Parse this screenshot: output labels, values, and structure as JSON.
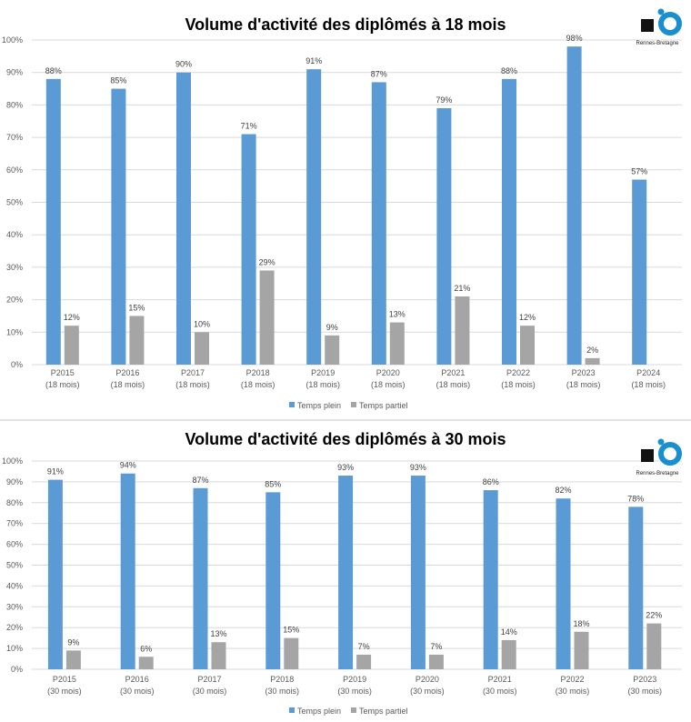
{
  "colors": {
    "plein": "#5B9BD5",
    "partiel": "#A5A5A5",
    "grid": "#D9D9D9",
    "text": "#595959",
    "logo_blue": "#1A8FD0"
  },
  "logo": {
    "text": "Rennes-Bretagne"
  },
  "chart_data": [
    {
      "type": "bar",
      "title": "Volume d'activité des diplômés à 18 mois",
      "categories": [
        "P2015",
        "P2016",
        "P2017",
        "P2018",
        "P2019",
        "P2020",
        "P2021",
        "P2022",
        "P2023",
        "P2024"
      ],
      "category_sub": "(18 mois)",
      "ylim": [
        0,
        100
      ],
      "yticks": [
        "0%",
        "10%",
        "20%",
        "30%",
        "40%",
        "50%",
        "60%",
        "70%",
        "80%",
        "90%",
        "100%"
      ],
      "legend_position": "bottom",
      "series": [
        {
          "name": "Temps plein",
          "values": [
            88,
            85,
            90,
            71,
            91,
            87,
            79,
            88,
            98,
            57
          ],
          "labels": [
            "88%",
            "85%",
            "90%",
            "71%",
            "91%",
            "87%",
            "79%",
            "88%",
            "98%",
            "57%"
          ]
        },
        {
          "name": "Temps partiel",
          "values": [
            12,
            15,
            10,
            29,
            9,
            13,
            21,
            12,
            2,
            null
          ],
          "labels": [
            "12%",
            "15%",
            "10%",
            "29%",
            "9%",
            "13%",
            "21%",
            "12%",
            "2%",
            null
          ]
        }
      ]
    },
    {
      "type": "bar",
      "title": "Volume d'activité des diplômés à 30 mois",
      "categories": [
        "P2015",
        "P2016",
        "P2017",
        "P2018",
        "P2019",
        "P2020",
        "P2021",
        "P2022",
        "P2023"
      ],
      "category_sub": "(30 mois)",
      "ylim": [
        0,
        100
      ],
      "yticks": [
        "0%",
        "10%",
        "20%",
        "30%",
        "40%",
        "50%",
        "60%",
        "70%",
        "80%",
        "90%",
        "100%"
      ],
      "legend_position": "bottom",
      "series": [
        {
          "name": "Temps plein",
          "values": [
            91,
            94,
            87,
            85,
            93,
            93,
            86,
            82,
            78
          ],
          "labels": [
            "91%",
            "94%",
            "87%",
            "85%",
            "93%",
            "93%",
            "86%",
            "82%",
            "78%"
          ]
        },
        {
          "name": "Temps partiel",
          "values": [
            9,
            6,
            13,
            15,
            7,
            7,
            14,
            18,
            22
          ],
          "labels": [
            "9%",
            "6%",
            "13%",
            "15%",
            "7%",
            "7%",
            "14%",
            "18%",
            "22%"
          ]
        }
      ]
    }
  ]
}
